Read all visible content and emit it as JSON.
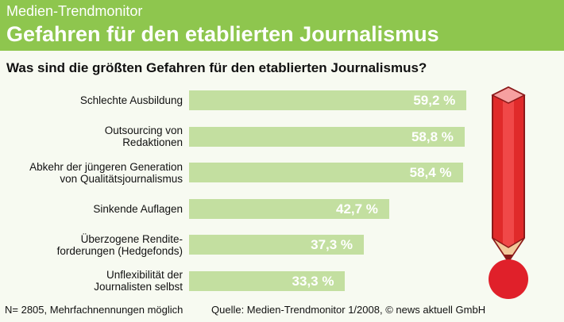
{
  "chart_data": {
    "type": "bar",
    "orientation": "horizontal",
    "kicker": "Medien-Trendmonitor",
    "title": "Gefahren für den etablierten Journalismus",
    "subtitle": "Was sind die größten Gefahren für den etablierten Journalismus?",
    "categories": [
      "Schlechte Ausbildung",
      "Outsourcing von\nRedaktionen",
      "Abkehr der jüngeren Generation\nvon Qualitätsjournalismus",
      "Sinkende Auflagen",
      "Überzogene Rendite-\nforderungen (Hedgefonds)",
      "Unflexibilität der\nJournalisten selbst"
    ],
    "values": [
      59.2,
      58.8,
      58.4,
      42.7,
      37.3,
      33.3
    ],
    "value_labels": [
      "59,2 %",
      "58,8 %",
      "58,4 %",
      "42,7 %",
      "37,3 %",
      "33,3 %"
    ],
    "color": "#c3dfa0",
    "note": "N= 2805, Mehrfachnennungen möglich",
    "source": "Quelle: Medien-Trendmonitor 1/2008, © news aktuell GmbH"
  }
}
